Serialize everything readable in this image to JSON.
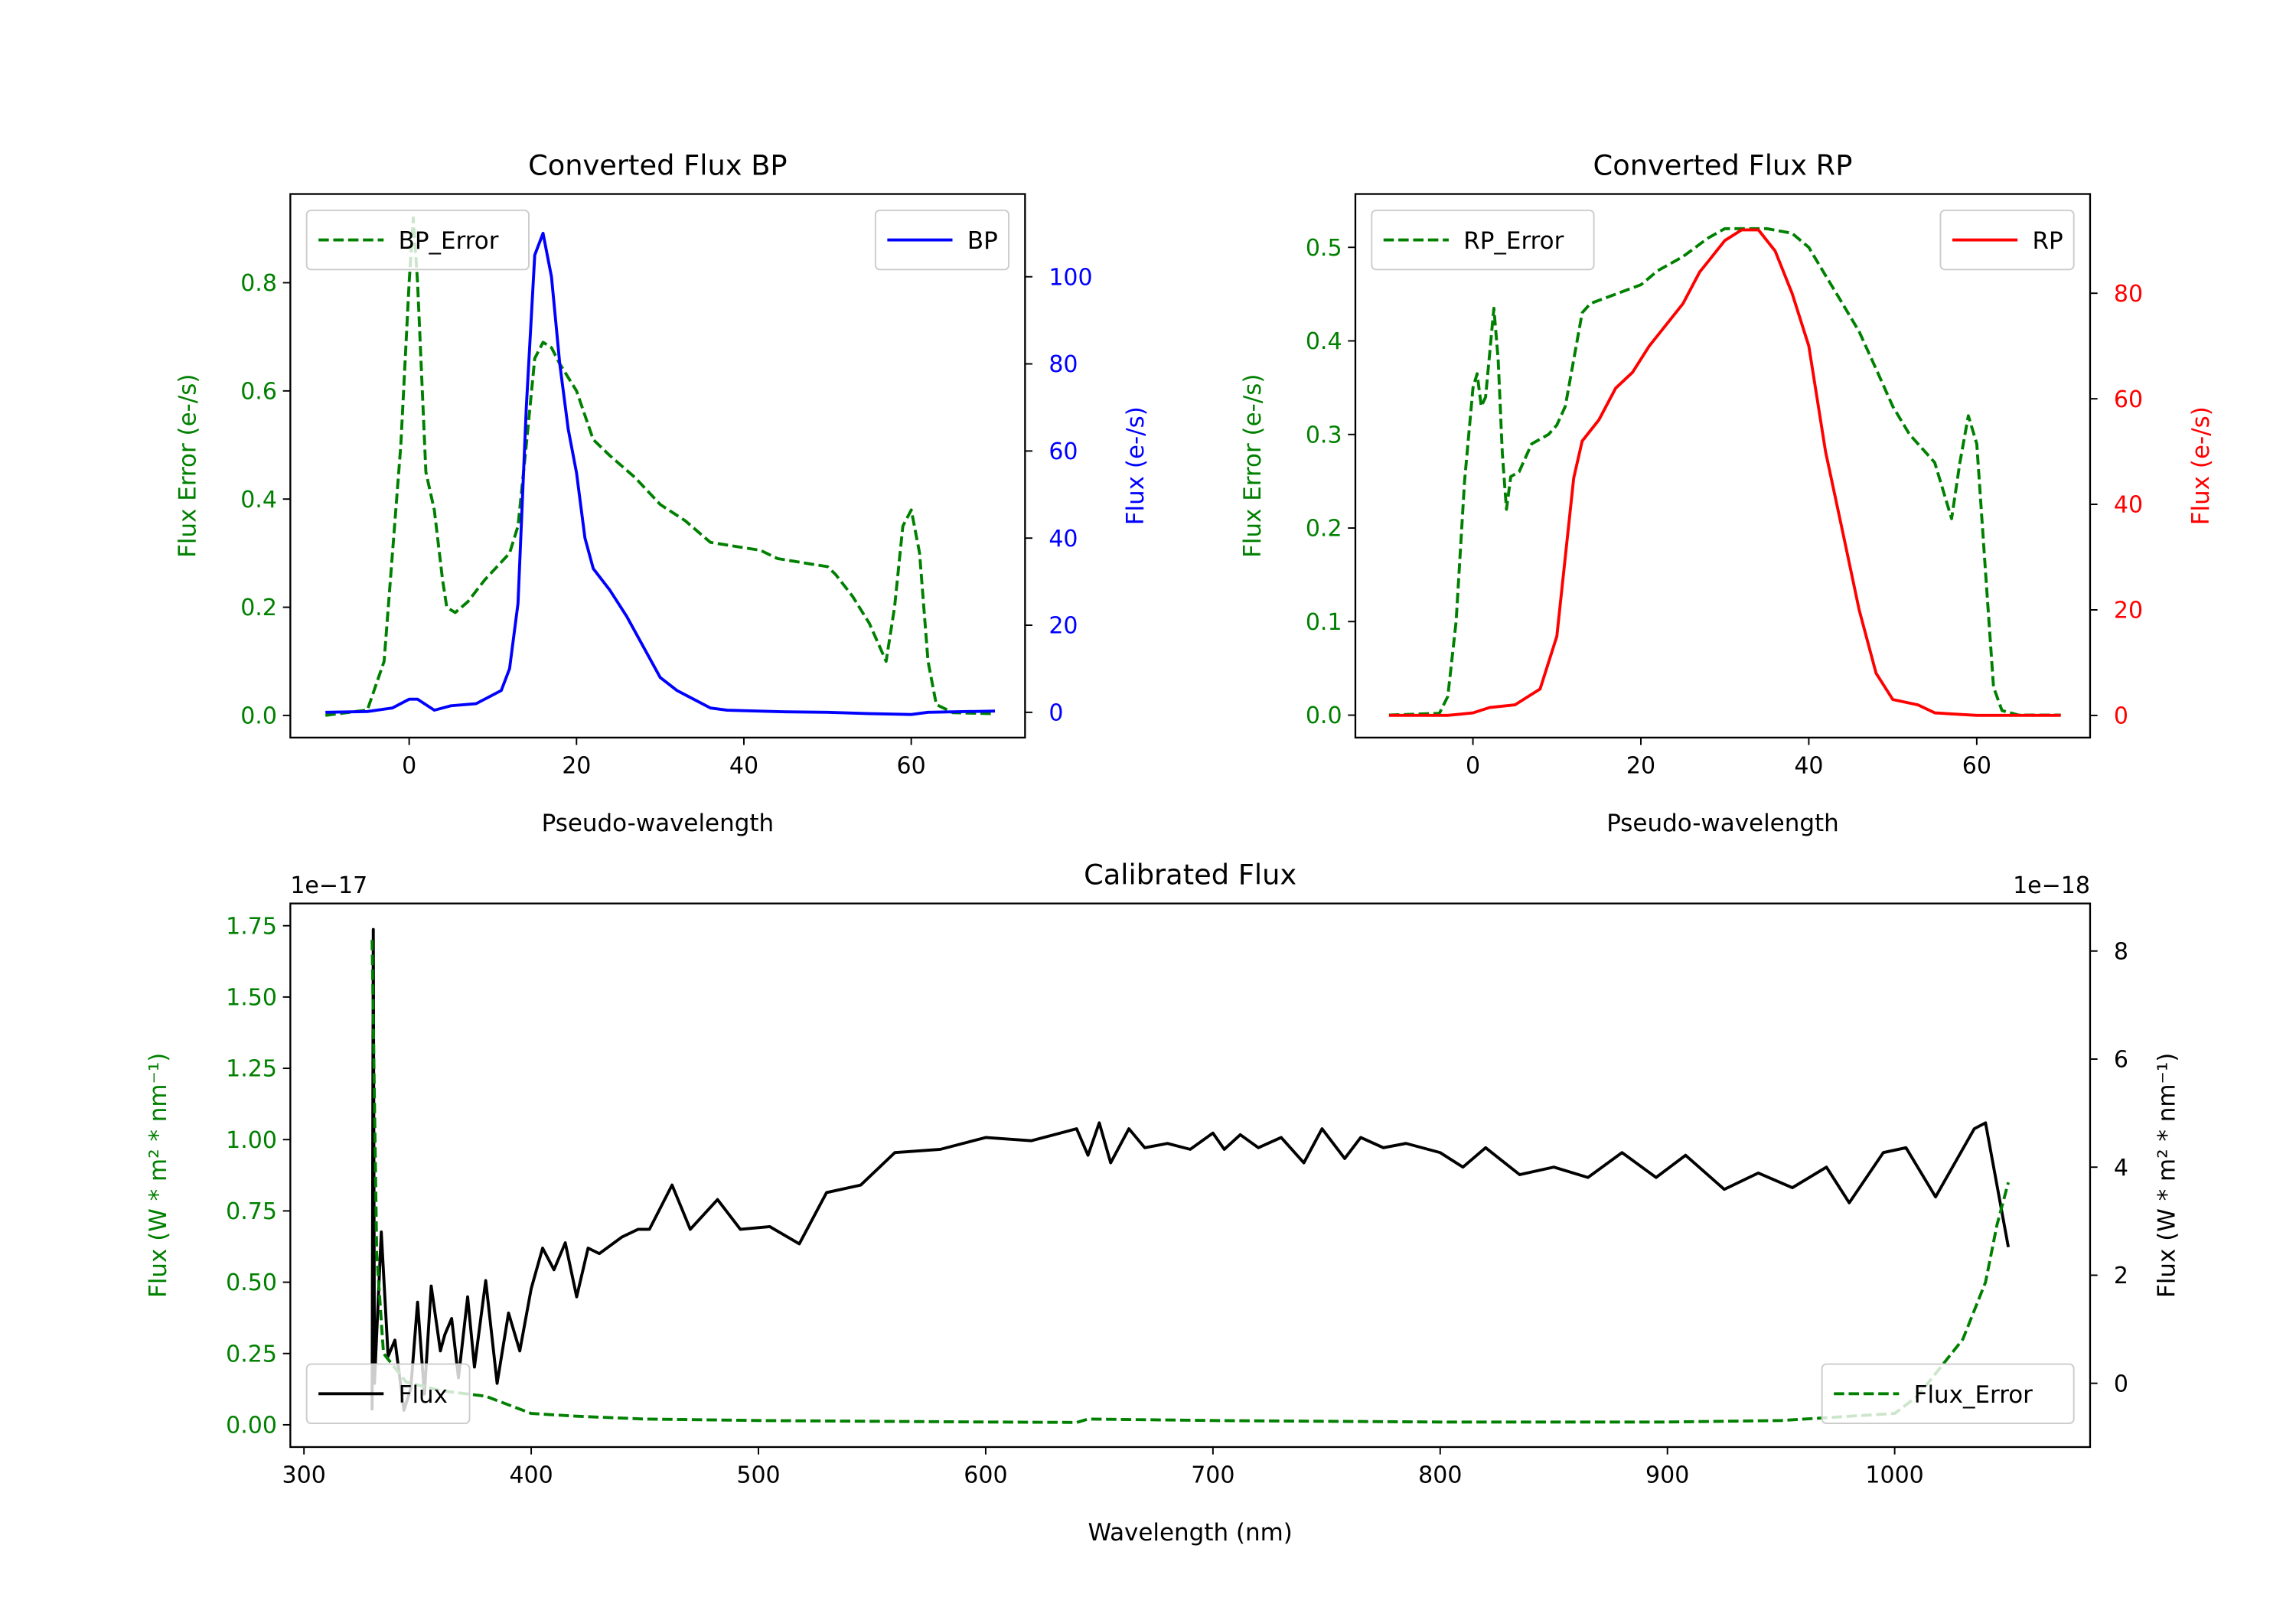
{
  "chart_data": [
    {
      "id": "bp",
      "type": "line",
      "title": "Converted Flux BP",
      "xlabel": "Pseudo-wavelength",
      "ylabel_left": "Flux Error (e-/s)",
      "ylabel_right": "Flux (e-/s)",
      "left_color": "#008000",
      "right_color": "#0000ff",
      "xlim": [
        -14.2,
        73.6
      ],
      "ylim_left": [
        -0.041,
        0.964
      ],
      "ylim_right": [
        -5.8,
        119
      ],
      "xticks": [
        0,
        20,
        40,
        60
      ],
      "yticks_left": [
        "0.0",
        "0.2",
        "0.4",
        "0.6",
        "0.8"
      ],
      "yticks_right": [
        "0",
        "20",
        "40",
        "60",
        "80",
        "100"
      ],
      "series": [
        {
          "name": "BP_Error",
          "axis": "left",
          "color": "#008000",
          "dash": true,
          "legend": "upper-left",
          "x": [
            -10,
            -5,
            -3,
            -1,
            0,
            0.5,
            1,
            2,
            3,
            4,
            4.5,
            5.5,
            7,
            9,
            12,
            13,
            14,
            15,
            16,
            17,
            18,
            20,
            22,
            24,
            27,
            30,
            33,
            36,
            40,
            42,
            44,
            48,
            50,
            51,
            53,
            55,
            57,
            58,
            59,
            60,
            61,
            62,
            63,
            65,
            70
          ],
          "y": [
            0,
            0.01,
            0.1,
            0.5,
            0.8,
            0.92,
            0.8,
            0.45,
            0.38,
            0.25,
            0.2,
            0.19,
            0.21,
            0.25,
            0.3,
            0.35,
            0.5,
            0.66,
            0.69,
            0.68,
            0.65,
            0.6,
            0.51,
            0.48,
            0.44,
            0.39,
            0.36,
            0.32,
            0.31,
            0.305,
            0.29,
            0.28,
            0.275,
            0.26,
            0.22,
            0.17,
            0.1,
            0.2,
            0.35,
            0.38,
            0.3,
            0.1,
            0.02,
            0.005,
            0.003
          ]
        },
        {
          "name": "BP",
          "axis": "right",
          "color": "#0000ff",
          "dash": false,
          "legend": "upper-right",
          "x": [
            -10,
            -5,
            -2,
            0,
            1,
            3,
            5,
            8,
            11,
            12,
            13,
            14,
            15,
            16,
            17,
            18,
            19,
            20,
            21,
            22,
            24,
            26,
            28,
            30,
            32,
            34,
            36,
            38,
            40,
            45,
            50,
            55,
            60,
            62,
            70
          ],
          "y": [
            0,
            0.2,
            1,
            3,
            3,
            0.5,
            1.5,
            2,
            5,
            10,
            25,
            70,
            105,
            110,
            100,
            80,
            65,
            55,
            40,
            33,
            28,
            22,
            15,
            8,
            5,
            3,
            1,
            0.5,
            0.4,
            0.1,
            0,
            -0.3,
            -0.5,
            0,
            0.3
          ]
        }
      ]
    },
    {
      "id": "rp",
      "type": "line",
      "title": "Converted Flux RP",
      "xlabel": "Pseudo-wavelength",
      "ylabel_left": "Flux Error (e-/s)",
      "ylabel_right": "Flux (e-/s)",
      "left_color": "#008000",
      "right_color": "#ff0000",
      "xlim": [
        -14,
        73.5
      ],
      "ylim_left": [
        -0.024,
        0.557
      ],
      "ylim_right": [
        -4.2,
        98.8
      ],
      "xticks": [
        0,
        20,
        40,
        60
      ],
      "yticks_left": [
        "0.0",
        "0.1",
        "0.2",
        "0.3",
        "0.4",
        "0.5"
      ],
      "yticks_right": [
        "0",
        "20",
        "40",
        "60",
        "80"
      ],
      "series": [
        {
          "name": "RP_Error",
          "axis": "left",
          "color": "#008000",
          "dash": true,
          "legend": "upper-left",
          "x": [
            -10,
            -4,
            -3,
            -2,
            -1,
            0,
            0.5,
            1,
            1.5,
            2.5,
            3,
            3.5,
            4,
            4.5,
            5.5,
            7,
            9,
            10,
            11,
            12,
            13,
            14,
            17,
            20,
            22,
            25,
            28,
            30,
            35,
            38,
            40,
            42,
            44,
            46,
            48,
            50,
            52,
            54,
            55,
            56,
            57,
            58,
            59,
            60,
            61,
            62,
            63,
            65,
            70
          ],
          "y": [
            0,
            0.002,
            0.02,
            0.1,
            0.25,
            0.35,
            0.365,
            0.33,
            0.34,
            0.435,
            0.38,
            0.28,
            0.22,
            0.255,
            0.26,
            0.29,
            0.3,
            0.31,
            0.33,
            0.38,
            0.43,
            0.44,
            0.45,
            0.46,
            0.475,
            0.49,
            0.51,
            0.52,
            0.52,
            0.515,
            0.5,
            0.47,
            0.44,
            0.41,
            0.37,
            0.33,
            0.3,
            0.28,
            0.27,
            0.24,
            0.21,
            0.27,
            0.32,
            0.29,
            0.16,
            0.03,
            0.005,
            0,
            0
          ]
        },
        {
          "name": "RP",
          "axis": "right",
          "color": "#ff0000",
          "dash": false,
          "legend": "upper-right",
          "x": [
            -10,
            -3,
            0,
            2,
            5,
            8,
            10,
            11,
            12,
            13,
            15,
            17,
            19,
            21,
            23,
            25,
            27,
            28,
            30,
            32,
            34,
            36,
            38,
            40,
            42,
            44,
            46,
            48,
            50,
            53,
            55,
            57,
            60,
            70
          ],
          "y": [
            0,
            0,
            0.5,
            1.5,
            2,
            5,
            15,
            30,
            45,
            52,
            56,
            62,
            65,
            70,
            74,
            78,
            84,
            86,
            90,
            92,
            92,
            88,
            80,
            70,
            50,
            35,
            20,
            8,
            3,
            2,
            0.5,
            0.3,
            0,
            0
          ]
        }
      ]
    },
    {
      "id": "cal",
      "type": "line",
      "title": "Calibrated Flux",
      "xlabel": "Wavelength (nm)",
      "ylabel_left": "Flux (W * m² * nm⁻¹)",
      "ylabel_right": "Flux (W * m² * nm⁻¹)",
      "left_color": "#008000",
      "right_color": "#000000",
      "offset_left": "1e−17",
      "offset_right": "1e−18",
      "xlim": [
        294,
        1086
      ],
      "ylim_left": [
        -0.078,
        1.828
      ],
      "ylim_right": [
        -1.18,
        8.88
      ],
      "xticks": [
        300,
        400,
        500,
        600,
        700,
        800,
        900,
        1000
      ],
      "yticks_left": [
        "0.00",
        "0.25",
        "0.50",
        "0.75",
        "1.00",
        "1.25",
        "1.50",
        "1.75"
      ],
      "yticks_right": [
        "0",
        "2",
        "4",
        "6",
        "8"
      ],
      "series": [
        {
          "name": "Flux",
          "axis": "right",
          "color": "#000000",
          "dash": false,
          "legend": "lower-left",
          "x": [
            330,
            330.5,
            331,
            334,
            337,
            340,
            344,
            347,
            350,
            353,
            356,
            360,
            362,
            365,
            368,
            372,
            375,
            380,
            385,
            390,
            395,
            400,
            405,
            410,
            415,
            420,
            425,
            430,
            440,
            447,
            452,
            462,
            470,
            482,
            492,
            505,
            518,
            530,
            545,
            560,
            580,
            600,
            620,
            640,
            645,
            650,
            655,
            663,
            670,
            680,
            690,
            700,
            705,
            712,
            720,
            730,
            740,
            748,
            758,
            765,
            775,
            785,
            800,
            810,
            820,
            835,
            850,
            865,
            880,
            895,
            908,
            925,
            940,
            955,
            970,
            980,
            995,
            1005,
            1018,
            1035,
            1040,
            1050
          ],
          "y": [
            -0.5,
            8.4,
            0,
            2.8,
            0.5,
            0.8,
            -0.5,
            -0.1,
            1.5,
            -0.2,
            1.8,
            0.6,
            0.9,
            1.2,
            0.1,
            1.6,
            0.3,
            1.9,
            0.0,
            1.3,
            0.6,
            1.75,
            2.5,
            2.1,
            2.6,
            1.6,
            2.5,
            2.4,
            2.71,
            2.85,
            2.85,
            3.67,
            2.85,
            3.4,
            2.85,
            2.9,
            2.58,
            3.53,
            3.67,
            4.27,
            4.33,
            4.55,
            4.49,
            4.71,
            4.22,
            4.82,
            4.08,
            4.71,
            4.36,
            4.44,
            4.33,
            4.63,
            4.33,
            4.6,
            4.36,
            4.55,
            4.08,
            4.71,
            4.16,
            4.55,
            4.36,
            4.44,
            4.27,
            4.0,
            4.36,
            3.86,
            4.0,
            3.81,
            4.27,
            3.81,
            4.22,
            3.59,
            3.89,
            3.62,
            4.0,
            3.34,
            4.27,
            4.36,
            3.45,
            4.71,
            4.82,
            2.52
          ]
        },
        {
          "name": "Flux_Error",
          "axis": "left",
          "color": "#008000",
          "dash": true,
          "legend": "lower-right",
          "x": [
            330,
            332,
            335,
            345,
            360,
            380,
            400,
            420,
            450,
            500,
            600,
            640,
            645,
            700,
            800,
            900,
            950,
            1000,
            1010,
            1020,
            1030,
            1040,
            1045,
            1050
          ],
          "y": [
            1.7,
            0.6,
            0.25,
            0.15,
            0.12,
            0.1,
            0.04,
            0.03,
            0.02,
            0.015,
            0.01,
            0.008,
            0.02,
            0.015,
            0.01,
            0.01,
            0.015,
            0.04,
            0.1,
            0.2,
            0.3,
            0.5,
            0.7,
            0.85
          ]
        }
      ]
    }
  ]
}
